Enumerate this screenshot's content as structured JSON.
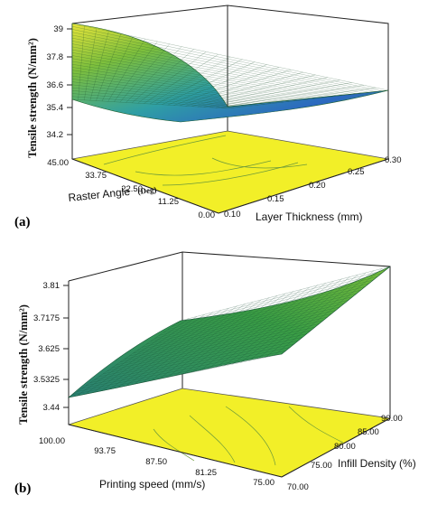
{
  "chart_data": [
    {
      "type": "surface",
      "panel_label": "(a)",
      "zlabel": "Tensile strength (N/mm²)",
      "z_ticks": [
        "39",
        "37.8",
        "36.6",
        "35.4",
        "34.2"
      ],
      "x_axis": {
        "label": "Raster Angle",
        "unit": "(Deg)",
        "ticks": [
          "45.00",
          "33.75",
          "22.50",
          "11.25",
          "0.00"
        ]
      },
      "y_axis": {
        "label": "Layer Thickness (mm)",
        "ticks": [
          "0.10",
          "0.15",
          "0.20",
          "0.25",
          "0.30"
        ]
      },
      "zlim": [
        34.2,
        39
      ],
      "surface_corners": {
        "raster0_thick0.10": 34.6,
        "raster45_thick0.10": 39.0,
        "raster45_thick0.30": 35.6,
        "raster0_thick0.30": 35.0
      },
      "colors": {
        "surface_high": "#3f9ad0",
        "surface_low": "#2f9d3a",
        "floor": "#f2ef28"
      }
    },
    {
      "type": "surface",
      "panel_label": "(b)",
      "zlabel": "Tensile strength (N/mm²)",
      "z_ticks": [
        "3.81",
        "3.7175",
        "3.625",
        "3.5325",
        "3.44"
      ],
      "x_axis": {
        "label": "Printing speed (mm/s)",
        "ticks": [
          "100.00",
          "93.75",
          "87.50",
          "81.25",
          "75.00"
        ]
      },
      "y_axis": {
        "label": "Infill Density (%)",
        "ticks": [
          "70.00",
          "75.00",
          "80.00",
          "85.00",
          "90.00"
        ]
      },
      "zlim": [
        3.44,
        3.81
      ],
      "surface_corners": {
        "speed100_infill70": 3.44,
        "speed75_infill70": 3.56,
        "speed75_infill90": 3.81,
        "speed100_infill90": 3.58
      },
      "colors": {
        "surface_high": "#6fb83a",
        "surface_low": "#2f8a7a",
        "floor": "#f2ef28"
      }
    }
  ]
}
